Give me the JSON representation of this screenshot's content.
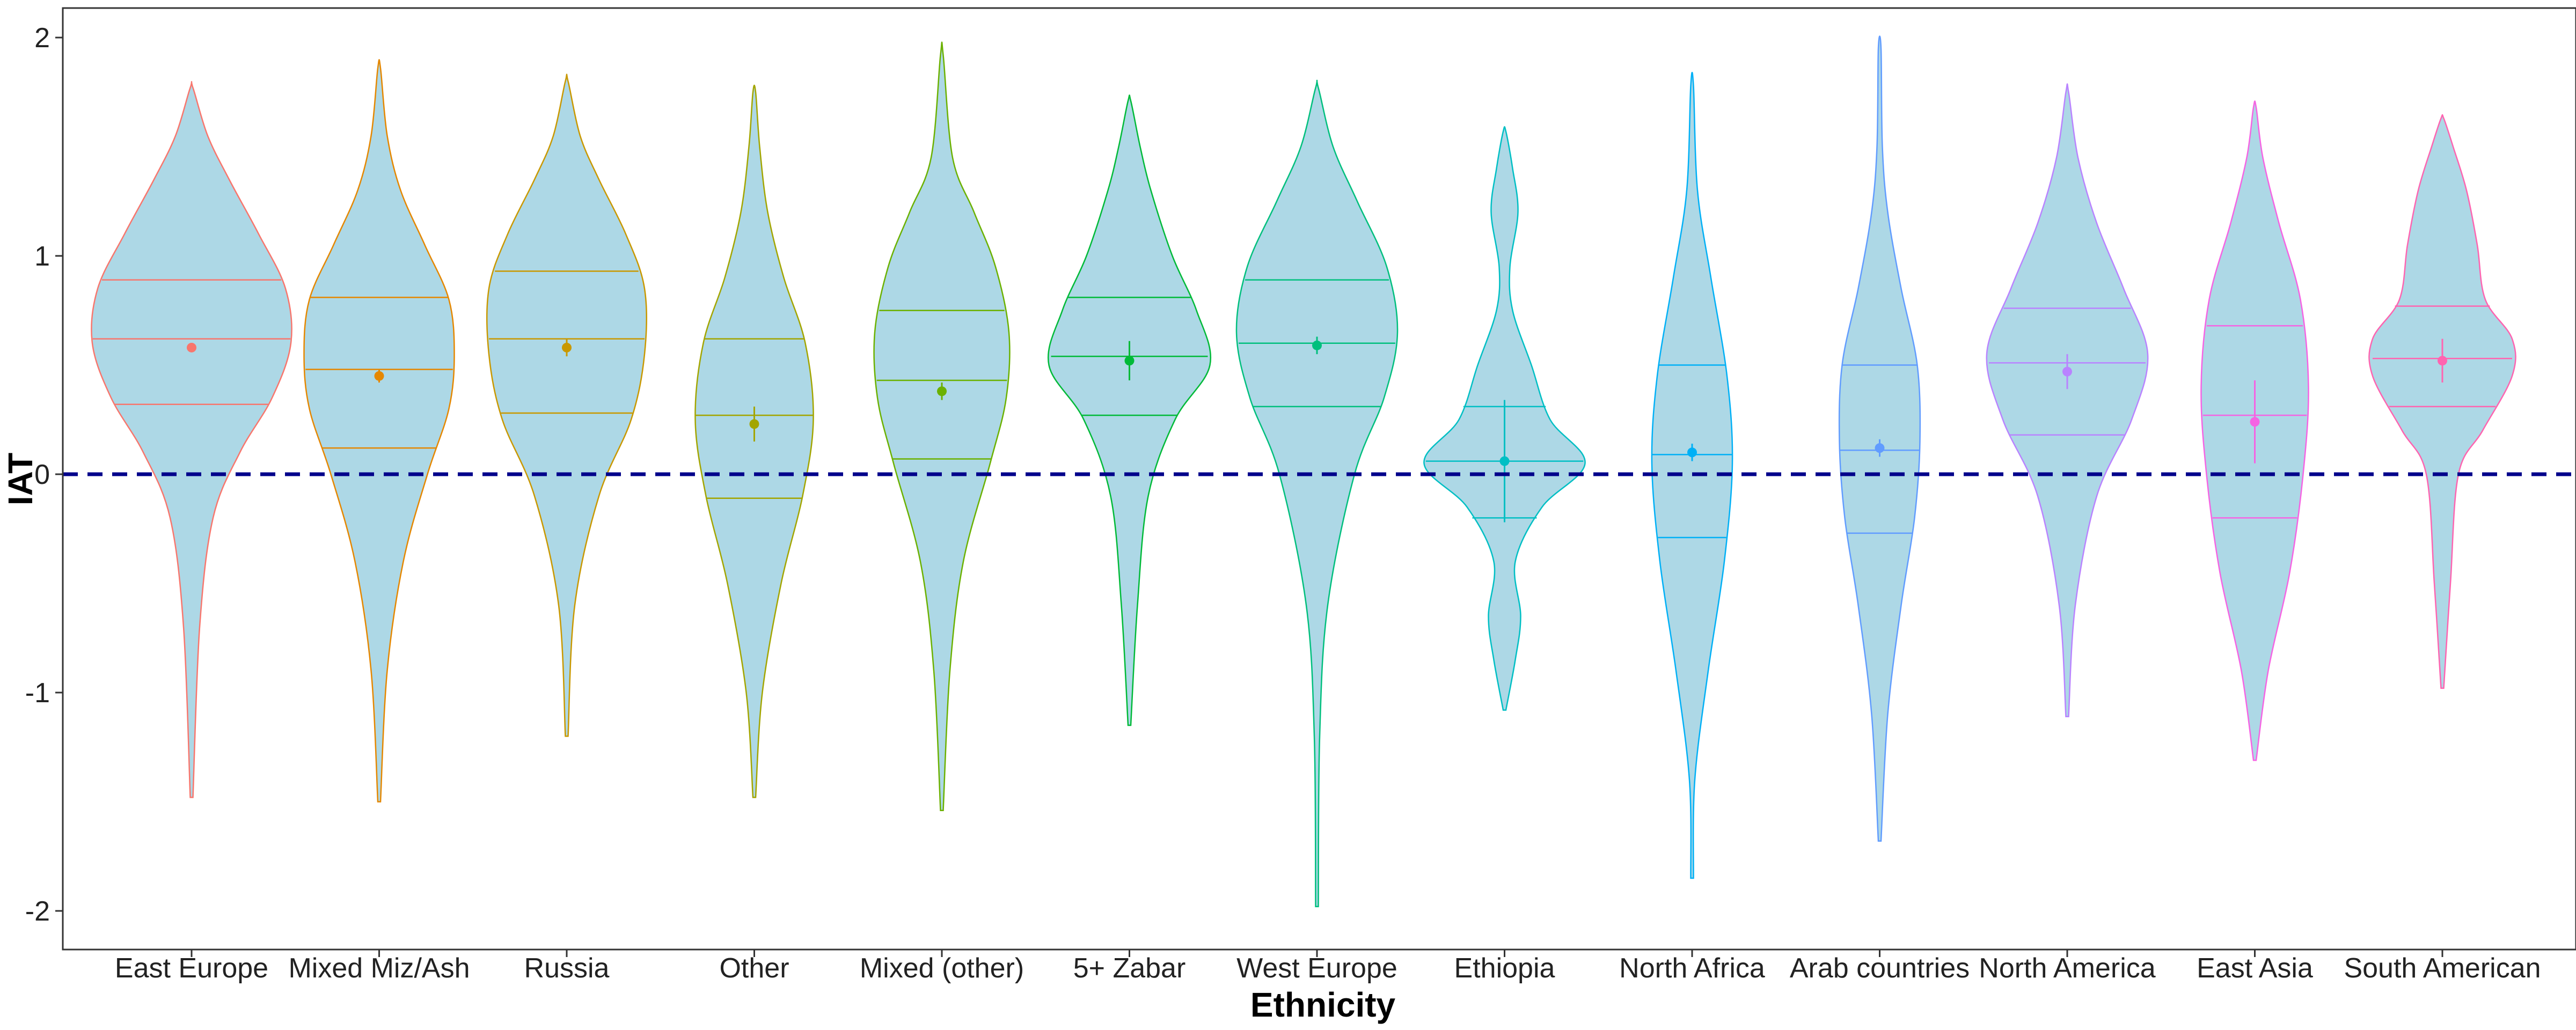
{
  "chart_data": {
    "type": "violin",
    "xlabel": "Ethnicity",
    "ylabel": "IAT",
    "ylim": [
      -2.2,
      2.15
    ],
    "yticks": [
      -2,
      -1,
      0,
      1,
      2
    ],
    "reference_line": {
      "y": 0,
      "style": "dashed",
      "color": "#00008B"
    },
    "violin_fill": "#ADD8E6",
    "grid": false,
    "legend": "none",
    "categories": [
      "East Europe",
      "Mixed Miz/Ash",
      "Russia",
      "Other",
      "Mixed (other)",
      "5+ Zabar",
      "West Europe",
      "Ethiopia",
      "North Africa",
      "Arab countries",
      "North America",
      "East Asia",
      "South American"
    ],
    "series": [
      {
        "category": "East Europe",
        "color": "#F8766D",
        "min": -1.48,
        "max": 1.77,
        "q1": 0.32,
        "median": 0.62,
        "q3": 0.89,
        "mean": 0.58,
        "ci": [
          0.56,
          0.6
        ],
        "density": [
          [
            -1.48,
            0.005
          ],
          [
            -0.7,
            0.03
          ],
          [
            -0.2,
            0.08
          ],
          [
            0.1,
            0.18
          ],
          [
            0.35,
            0.3
          ],
          [
            0.6,
            0.37
          ],
          [
            0.85,
            0.35
          ],
          [
            1.1,
            0.25
          ],
          [
            1.35,
            0.14
          ],
          [
            1.55,
            0.06
          ],
          [
            1.77,
            0.005
          ]
        ]
      },
      {
        "category": "Mixed Miz/Ash",
        "color": "#E58700",
        "min": -1.5,
        "max": 1.86,
        "q1": 0.12,
        "median": 0.48,
        "q3": 0.81,
        "mean": 0.45,
        "ci": [
          0.42,
          0.48
        ],
        "density": [
          [
            -1.5,
            0.005
          ],
          [
            -0.9,
            0.03
          ],
          [
            -0.4,
            0.09
          ],
          [
            0.0,
            0.18
          ],
          [
            0.3,
            0.26
          ],
          [
            0.55,
            0.28
          ],
          [
            0.8,
            0.26
          ],
          [
            1.05,
            0.17
          ],
          [
            1.3,
            0.08
          ],
          [
            1.55,
            0.03
          ],
          [
            1.86,
            0.005
          ]
        ]
      },
      {
        "category": "Russia",
        "color": "#C99800",
        "min": -1.2,
        "max": 1.8,
        "q1": 0.28,
        "median": 0.62,
        "q3": 0.93,
        "mean": 0.58,
        "ci": [
          0.54,
          0.62
        ],
        "density": [
          [
            -1.2,
            0.005
          ],
          [
            -0.6,
            0.03
          ],
          [
            -0.1,
            0.12
          ],
          [
            0.25,
            0.24
          ],
          [
            0.55,
            0.29
          ],
          [
            0.85,
            0.29
          ],
          [
            1.1,
            0.22
          ],
          [
            1.35,
            0.12
          ],
          [
            1.55,
            0.05
          ],
          [
            1.8,
            0.005
          ]
        ]
      },
      {
        "category": "Other",
        "color": "#A3A500",
        "min": -1.48,
        "max": 1.75,
        "q1": -0.11,
        "median": 0.27,
        "q3": 0.62,
        "mean": 0.23,
        "ci": [
          0.15,
          0.31
        ],
        "density": [
          [
            -1.48,
            0.005
          ],
          [
            -1.0,
            0.03
          ],
          [
            -0.5,
            0.1
          ],
          [
            -0.1,
            0.18
          ],
          [
            0.25,
            0.22
          ],
          [
            0.6,
            0.19
          ],
          [
            0.9,
            0.11
          ],
          [
            1.2,
            0.05
          ],
          [
            1.5,
            0.02
          ],
          [
            1.75,
            0.005
          ]
        ]
      },
      {
        "category": "Mixed (other)",
        "color": "#6BB100",
        "min": -1.54,
        "max": 1.92,
        "q1": 0.07,
        "median": 0.43,
        "q3": 0.75,
        "mean": 0.38,
        "ci": [
          0.34,
          0.42
        ],
        "density": [
          [
            -1.54,
            0.005
          ],
          [
            -0.9,
            0.03
          ],
          [
            -0.4,
            0.08
          ],
          [
            0.05,
            0.18
          ],
          [
            0.35,
            0.24
          ],
          [
            0.65,
            0.25
          ],
          [
            0.95,
            0.2
          ],
          [
            1.2,
            0.12
          ],
          [
            1.45,
            0.04
          ],
          [
            1.92,
            0.005
          ]
        ]
      },
      {
        "category": "5+ Zabar",
        "color": "#00BA38",
        "min": -1.15,
        "max": 1.71,
        "q1": 0.27,
        "median": 0.54,
        "q3": 0.81,
        "mean": 0.52,
        "ci": [
          0.43,
          0.61
        ],
        "density": [
          [
            -1.15,
            0.005
          ],
          [
            -0.6,
            0.03
          ],
          [
            -0.1,
            0.07
          ],
          [
            0.25,
            0.17
          ],
          [
            0.5,
            0.3
          ],
          [
            0.75,
            0.25
          ],
          [
            1.0,
            0.16
          ],
          [
            1.3,
            0.08
          ],
          [
            1.5,
            0.04
          ],
          [
            1.71,
            0.005
          ]
        ]
      },
      {
        "category": "West Europe",
        "color": "#00BF7D",
        "min": -1.98,
        "max": 1.77,
        "q1": 0.31,
        "median": 0.6,
        "q3": 0.89,
        "mean": 0.59,
        "ci": [
          0.55,
          0.63
        ],
        "density": [
          [
            -1.98,
            0.005
          ],
          [
            -1.2,
            0.01
          ],
          [
            -0.6,
            0.04
          ],
          [
            0.0,
            0.14
          ],
          [
            0.35,
            0.25
          ],
          [
            0.65,
            0.3
          ],
          [
            0.95,
            0.26
          ],
          [
            1.25,
            0.15
          ],
          [
            1.5,
            0.06
          ],
          [
            1.77,
            0.005
          ]
        ]
      },
      {
        "category": "Ethiopia",
        "color": "#00BFC4",
        "min": -1.08,
        "max": 1.57,
        "q1": -0.2,
        "median": 0.06,
        "q3": 0.31,
        "mean": 0.06,
        "ci": [
          -0.22,
          0.34
        ],
        "density": [
          [
            -1.08,
            0.005
          ],
          [
            -0.85,
            0.04
          ],
          [
            -0.65,
            0.06
          ],
          [
            -0.4,
            0.04
          ],
          [
            -0.15,
            0.14
          ],
          [
            0.05,
            0.3
          ],
          [
            0.25,
            0.17
          ],
          [
            0.5,
            0.1
          ],
          [
            0.75,
            0.03
          ],
          [
            0.95,
            0.02
          ],
          [
            1.2,
            0.05
          ],
          [
            1.4,
            0.03
          ],
          [
            1.57,
            0.005
          ]
        ]
      },
      {
        "category": "North Africa",
        "color": "#00B0F6",
        "min": -1.85,
        "max": 1.78,
        "q1": -0.29,
        "median": 0.09,
        "q3": 0.5,
        "mean": 0.1,
        "ci": [
          0.06,
          0.14
        ],
        "density": [
          [
            -1.85,
            0.005
          ],
          [
            -1.4,
            0.01
          ],
          [
            -0.9,
            0.06
          ],
          [
            -0.4,
            0.12
          ],
          [
            0.05,
            0.15
          ],
          [
            0.45,
            0.13
          ],
          [
            0.9,
            0.07
          ],
          [
            1.3,
            0.02
          ],
          [
            1.78,
            0.005
          ]
        ]
      },
      {
        "category": "Arab countries",
        "color": "#619CFF",
        "min": -1.68,
        "max": 1.95,
        "q1": -0.27,
        "median": 0.11,
        "q3": 0.5,
        "mean": 0.12,
        "ci": [
          0.08,
          0.16
        ],
        "density": [
          [
            -1.68,
            0.005
          ],
          [
            -1.1,
            0.03
          ],
          [
            -0.6,
            0.08
          ],
          [
            -0.2,
            0.13
          ],
          [
            0.15,
            0.15
          ],
          [
            0.5,
            0.14
          ],
          [
            0.85,
            0.08
          ],
          [
            1.2,
            0.03
          ],
          [
            1.5,
            0.01
          ],
          [
            1.95,
            0.005
          ]
        ]
      },
      {
        "category": "North America",
        "color": "#B983FF",
        "min": -1.11,
        "max": 1.75,
        "q1": 0.18,
        "median": 0.51,
        "q3": 0.76,
        "mean": 0.47,
        "ci": [
          0.39,
          0.55
        ],
        "density": [
          [
            -1.11,
            0.005
          ],
          [
            -0.6,
            0.03
          ],
          [
            -0.1,
            0.11
          ],
          [
            0.25,
            0.24
          ],
          [
            0.55,
            0.3
          ],
          [
            0.85,
            0.21
          ],
          [
            1.15,
            0.11
          ],
          [
            1.45,
            0.04
          ],
          [
            1.75,
            0.005
          ]
        ]
      },
      {
        "category": "East Asia",
        "color": "#F564E3",
        "min": -1.31,
        "max": 1.68,
        "q1": -0.2,
        "median": 0.27,
        "q3": 0.68,
        "mean": 0.24,
        "ci": [
          0.05,
          0.43
        ],
        "density": [
          [
            -1.31,
            0.005
          ],
          [
            -0.9,
            0.05
          ],
          [
            -0.45,
            0.13
          ],
          [
            0.0,
            0.18
          ],
          [
            0.4,
            0.2
          ],
          [
            0.8,
            0.17
          ],
          [
            1.15,
            0.09
          ],
          [
            1.45,
            0.03
          ],
          [
            1.68,
            0.005
          ]
        ]
      },
      {
        "category": "South American",
        "color": "#FF64B0",
        "min": -0.98,
        "max": 1.63,
        "q1": 0.31,
        "median": 0.53,
        "q3": 0.77,
        "mean": 0.52,
        "ci": [
          0.42,
          0.62
        ],
        "density": [
          [
            -0.98,
            0.005
          ],
          [
            -0.5,
            0.03
          ],
          [
            0.0,
            0.06
          ],
          [
            0.2,
            0.15
          ],
          [
            0.45,
            0.26
          ],
          [
            0.62,
            0.26
          ],
          [
            0.8,
            0.16
          ],
          [
            1.05,
            0.13
          ],
          [
            1.3,
            0.09
          ],
          [
            1.5,
            0.04
          ],
          [
            1.63,
            0.005
          ]
        ]
      }
    ]
  }
}
